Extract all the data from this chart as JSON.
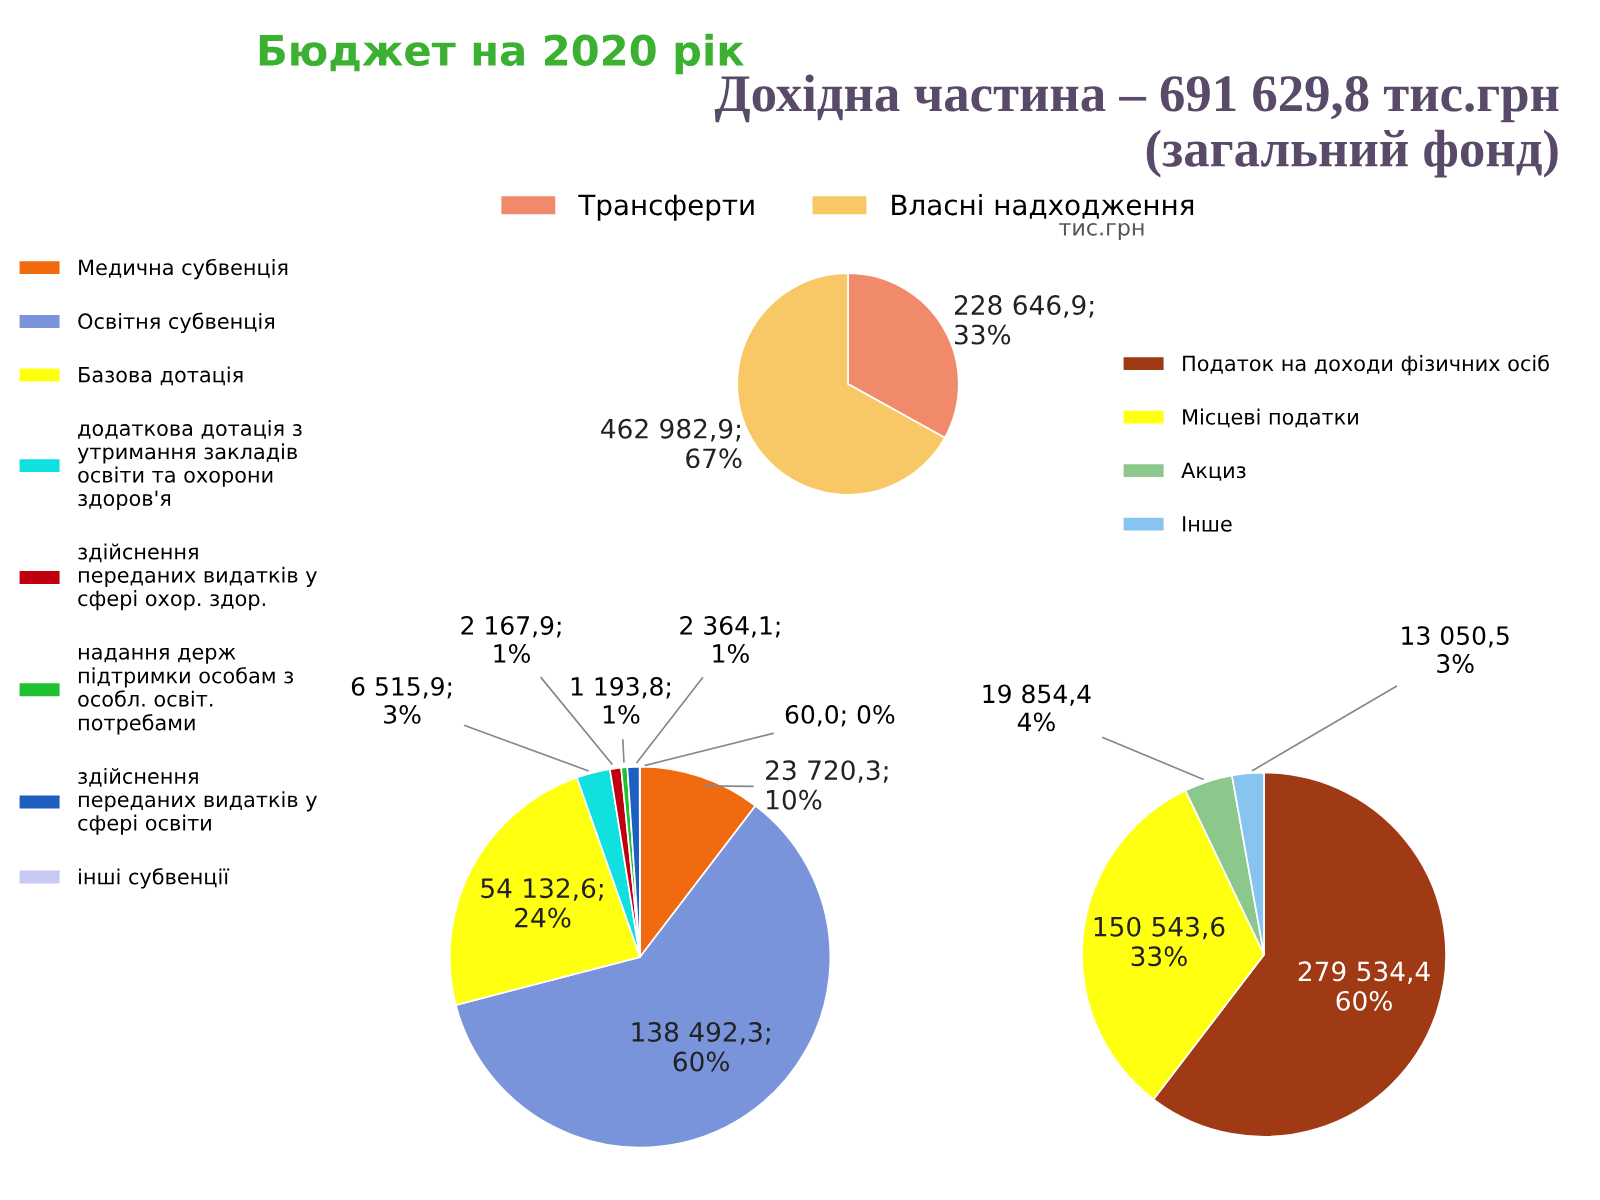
{
  "chart_data": [
    {
      "type": "pie",
      "title": "Бюджет на 2020 рік",
      "subtitle": "Дохідна частина – 691 629,8 тис.грн\n(загальний фонд)",
      "annotations": [
        "тис.грн"
      ],
      "legend": "top",
      "categories": [
        "Трансферти",
        "Власні надходження"
      ],
      "values": [
        228646.9,
        462982.9
      ],
      "colors": [
        "#f08a6a",
        "#f8c866"
      ],
      "value_labels": [
        "228 646,9;\n33%",
        "462 982,9;\n67%"
      ]
    },
    {
      "type": "pie",
      "legend": "left",
      "categories": [
        "Медична субвенція",
        "Освітня субвенція",
        "Базова дотація",
        "додаткова дотація з\nутримання закладів\nосвіти та охорони\nздоров'я",
        "здійснення\nпереданих видатків у\nсфері охор. здор.",
        "надання держ\nпідтримки особам з\nособл. освіт.\nпотребами",
        "здійснення\nпереданих видатків у\nсфері освіти",
        "інші субвенції"
      ],
      "values": [
        23720.3,
        138492.3,
        54132.6,
        6515.9,
        2167.9,
        1193.8,
        2364.1,
        60.0
      ],
      "colors": [
        "#f26a10",
        "#7a94dc",
        "#ffff10",
        "#10e0e0",
        "#c00010",
        "#20c030",
        "#1f5fbf",
        "#c8c8f4"
      ],
      "value_labels": [
        "23 720,3;\n10%",
        "138 492,3;\n60%",
        "54 132,6;\n24%",
        "6 515,9;\n3%",
        "2 167,9;\n1%",
        "1 193,8;\n1%",
        "2 364,1;\n1%",
        "60,0; 0%"
      ]
    },
    {
      "type": "pie",
      "legend": "right",
      "categories": [
        "Податок на доходи фізичних осіб",
        "Місцеві податки",
        "Акциз",
        "Інше"
      ],
      "values": [
        279534.4,
        150543.6,
        19854.4,
        13050.5
      ],
      "colors": [
        "#a03a14",
        "#ffff10",
        "#8cc88c",
        "#88c4f0"
      ],
      "value_labels": [
        "279 534,4\n60%",
        "150 543,6\n33%",
        "19 854,4\n4%",
        "13 050,5\n3%"
      ]
    }
  ]
}
